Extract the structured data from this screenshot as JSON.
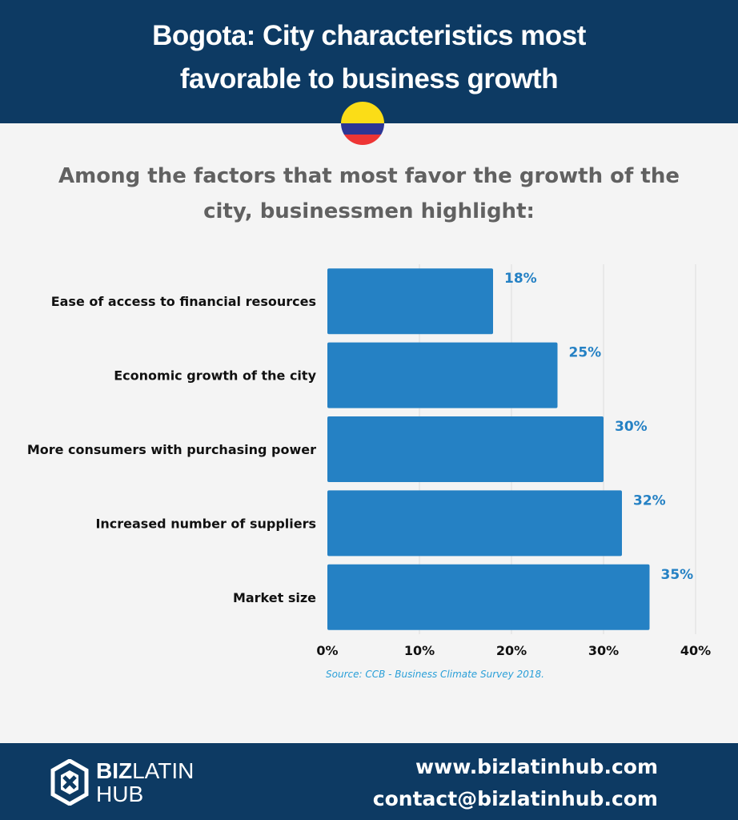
{
  "header": {
    "title": "Bogota: City characteristics most favorable to business growth"
  },
  "flag_colors": {
    "yellow": "#fbdd17",
    "blue": "#2d3694",
    "red": "#ee3535"
  },
  "subtitle": "Among the factors that most favor the growth of the city, businessmen highlight:",
  "chart_data": {
    "type": "bar",
    "orientation": "horizontal",
    "categories": [
      "Ease of access to financial resources",
      "Economic growth of the city",
      "More consumers with purchasing power",
      "Increased number of suppliers",
      "Market size"
    ],
    "values": [
      18,
      25,
      30,
      32,
      35
    ],
    "value_labels": [
      "18%",
      "25%",
      "30%",
      "32%",
      "35%"
    ],
    "xlim": [
      0,
      40
    ],
    "xticks": [
      0,
      10,
      20,
      30,
      40
    ],
    "xtick_labels": [
      "0%",
      "10%",
      "20%",
      "30%",
      "40%"
    ],
    "grid": true,
    "bar_color": "#2581c4",
    "label_color": "#2581c4"
  },
  "source": "Source: CCB - Business Climate Survey 2018.",
  "footer": {
    "logo_biz": "BIZ",
    "logo_latin": "LATIN",
    "logo_hub": "HUB",
    "website": "www.bizlatinhub.com",
    "email": "contact@bizlatinhub.com"
  }
}
